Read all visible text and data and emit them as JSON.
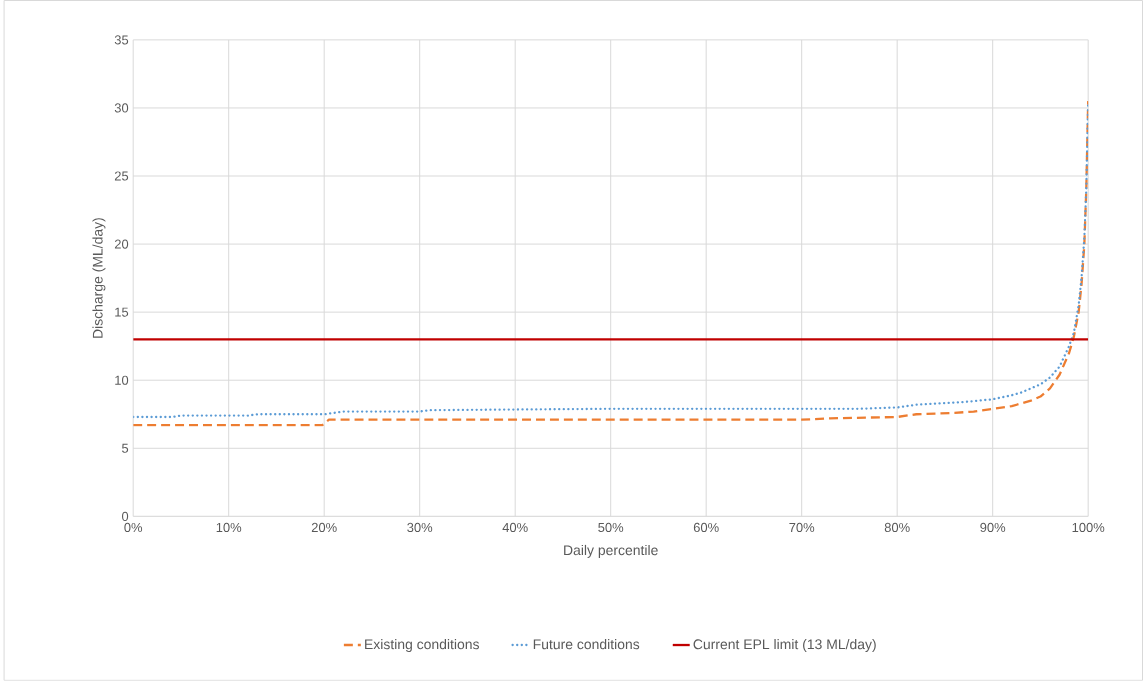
{
  "chart_data": {
    "type": "line",
    "xlabel": "Daily percentile",
    "ylabel": "Discharge (ML/day)",
    "xlim": [
      0,
      100
    ],
    "ylim": [
      0,
      35
    ],
    "xticks": [
      {
        "value": 0,
        "label": "0%"
      },
      {
        "value": 10,
        "label": "10%"
      },
      {
        "value": 20,
        "label": "20%"
      },
      {
        "value": 30,
        "label": "30%"
      },
      {
        "value": 40,
        "label": "40%"
      },
      {
        "value": 50,
        "label": "50%"
      },
      {
        "value": 60,
        "label": "60%"
      },
      {
        "value": 70,
        "label": "70%"
      },
      {
        "value": 80,
        "label": "80%"
      },
      {
        "value": 90,
        "label": "90%"
      },
      {
        "value": 100,
        "label": "100%"
      }
    ],
    "yticks": [
      0,
      5,
      10,
      15,
      20,
      25,
      30,
      35
    ],
    "grid": true,
    "legend": "bottom",
    "marker": "none",
    "series": [
      {
        "name": "Existing conditions",
        "color": "#ed7d31",
        "line_style": "dashed",
        "x": [
          0,
          10,
          19.8,
          20.5,
          30,
          50,
          70,
          73,
          80,
          82,
          86,
          88,
          90,
          92,
          93,
          94,
          95,
          96,
          97,
          98,
          98.5,
          99,
          99.3,
          99.6,
          99.8,
          100
        ],
        "values": [
          6.7,
          6.7,
          6.7,
          7.1,
          7.1,
          7.1,
          7.1,
          7.2,
          7.3,
          7.5,
          7.6,
          7.7,
          7.9,
          8.1,
          8.3,
          8.5,
          8.8,
          9.4,
          10.4,
          12,
          13.2,
          15,
          17,
          20,
          24,
          30.5
        ]
      },
      {
        "name": "Future conditions",
        "color": "#5b9bd5",
        "line_style": "dotted",
        "x": [
          0,
          4,
          5,
          12,
          13,
          20,
          22,
          30,
          31,
          50,
          76,
          80,
          82,
          87,
          90,
          92,
          93,
          94,
          95,
          96,
          97,
          98,
          98.5,
          99,
          99.3,
          99.6,
          99.8,
          100
        ],
        "values": [
          7.3,
          7.3,
          7.4,
          7.4,
          7.5,
          7.5,
          7.7,
          7.7,
          7.8,
          7.9,
          7.9,
          8.0,
          8.2,
          8.4,
          8.6,
          8.9,
          9.1,
          9.4,
          9.7,
          10.2,
          11,
          12.5,
          13.5,
          15.5,
          17.5,
          20.5,
          24,
          30.5
        ]
      }
    ],
    "ref_lines": [
      {
        "axis": "y",
        "value": 13,
        "label": "Current EPL limit (13 ML/day)",
        "color": "#c00000",
        "line_style": "solid"
      }
    ]
  }
}
